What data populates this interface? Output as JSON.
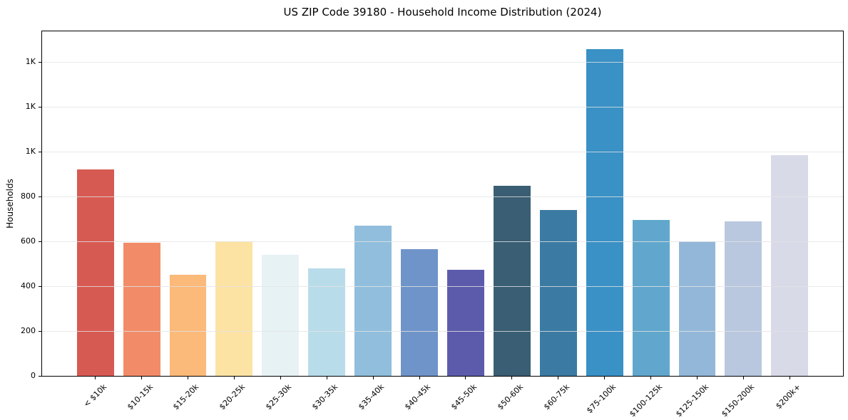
{
  "figure": {
    "title": "US ZIP Code 39180 - Household Income Distribution (2024)",
    "y_axis_label": "Households"
  },
  "chart_data": {
    "type": "bar",
    "title": "US ZIP Code 39180 - Household Income Distribution (2024)",
    "xlabel": "",
    "ylabel": "Households",
    "categories": [
      "< $10k",
      "$10-15k",
      "$15-20k",
      "$20-25k",
      "$25-30k",
      "$30-35k",
      "$35-40k",
      "$40-45k",
      "$45-50k",
      "$50-60k",
      "$60-75k",
      "$75-100k",
      "$100-125k",
      "$125-150k",
      "$150-200k",
      "$200k+"
    ],
    "values": [
      920,
      595,
      450,
      600,
      540,
      480,
      670,
      565,
      475,
      850,
      740,
      1460,
      695,
      600,
      690,
      985
    ],
    "bar_colors": [
      "#d75a52",
      "#f28c68",
      "#fbb97a",
      "#fce3a4",
      "#e7f2f5",
      "#b9dcea",
      "#91bedd",
      "#6f94c9",
      "#5c5bab",
      "#3a5e73",
      "#3b7ba3",
      "#3a91c5",
      "#61a7cd",
      "#93b7d9",
      "#b9c8df",
      "#d8dae8"
    ],
    "ylim": [
      0,
      1538
    ],
    "yticks": [
      {
        "value": 0,
        "label": "0"
      },
      {
        "value": 200,
        "label": "200"
      },
      {
        "value": 400,
        "label": "400"
      },
      {
        "value": 600,
        "label": "600"
      },
      {
        "value": 800,
        "label": "800"
      },
      {
        "value": 1000,
        "label": "1K"
      },
      {
        "value": 1200,
        "label": "1K"
      },
      {
        "value": 1400,
        "label": "1K"
      }
    ],
    "bar_width_fraction": 0.8,
    "x_side_margin_slots": 0.65,
    "grid": {
      "axis": "y",
      "drawn_above_bars": true
    },
    "legend": {
      "visible": false
    },
    "xtick_rotation_deg": 45
  }
}
